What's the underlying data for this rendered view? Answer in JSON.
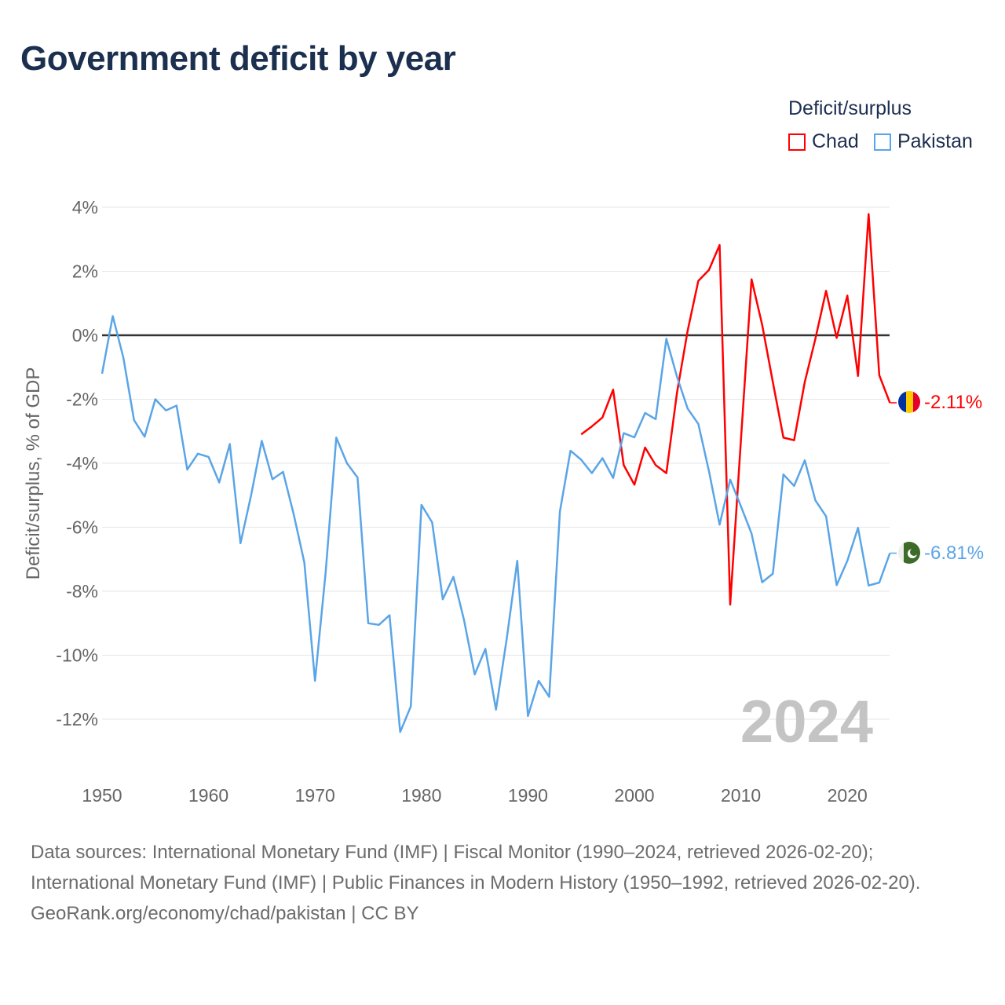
{
  "title": "Government deficit by year",
  "legend": {
    "title": "Deficit/surplus",
    "items": [
      {
        "name": "Chad",
        "color": "#ff0000"
      },
      {
        "name": "Pakistan",
        "color": "#5aa5e8"
      }
    ]
  },
  "footer": {
    "sources": "Data sources: International Monetary Fund (IMF) | Fiscal Monitor (1990–2024, retrieved 2026-02-20); International Monetary Fund (IMF) | Public Finances in Modern History (1950–1992, retrieved 2026-02-20).",
    "attribution": "GeoRank.org/economy/chad/pakistan | CC BY"
  },
  "chart_data": {
    "type": "line",
    "title": "Government deficit by year",
    "ylabel": "Deficit/surplus, % of GDP",
    "xlabel": "",
    "xlim": [
      1950,
      2024
    ],
    "ylim": [
      -12,
      4
    ],
    "x_ticks": [
      "1950",
      "1960",
      "1970",
      "1980",
      "1990",
      "2000",
      "2010",
      "2020"
    ],
    "y_ticks": [
      "4%",
      "2%",
      "0%",
      "-2%",
      "-4%",
      "-6%",
      "-8%",
      "-10%",
      "-12%"
    ],
    "year_watermark": "2024",
    "series": [
      {
        "name": "Chad",
        "color": "#ff0000",
        "end_label": "-2.11%",
        "start_year": 1995,
        "values": [
          -3.1,
          -2.85,
          -2.57,
          -1.7,
          -4.06,
          -4.67,
          -3.51,
          -4.06,
          -4.31,
          -1.8,
          0.14,
          1.7,
          2.04,
          2.82,
          -8.42,
          -3.3,
          1.75,
          0.33,
          -1.46,
          -3.2,
          -3.28,
          -1.46,
          -0.11,
          1.39,
          -0.08,
          1.24,
          -1.27,
          3.79,
          -1.25,
          -2.11
        ]
      },
      {
        "name": "Pakistan",
        "color": "#5aa5e8",
        "end_label": "-6.81%",
        "start_year": 1950,
        "values": [
          -1.2,
          0.6,
          -0.7,
          -2.65,
          -3.17,
          -2.0,
          -2.35,
          -2.2,
          -4.2,
          -3.7,
          -3.8,
          -4.6,
          -3.4,
          -6.5,
          -5.0,
          -3.3,
          -4.5,
          -4.27,
          -5.6,
          -7.1,
          -10.8,
          -7.4,
          -3.2,
          -4.0,
          -4.45,
          -9.0,
          -9.05,
          -8.75,
          -12.4,
          -11.6,
          -5.3,
          -5.85,
          -8.25,
          -7.55,
          -8.9,
          -10.6,
          -9.8,
          -11.7,
          -9.5,
          -7.05,
          -11.9,
          -10.8,
          -11.3,
          -5.51,
          -3.61,
          -3.89,
          -4.31,
          -3.84,
          -4.46,
          -3.06,
          -3.19,
          -2.43,
          -2.62,
          -0.11,
          -1.29,
          -2.29,
          -2.77,
          -4.24,
          -5.92,
          -4.51,
          -5.34,
          -6.2,
          -7.72,
          -7.45,
          -4.35,
          -4.71,
          -3.91,
          -5.16,
          -5.66,
          -7.81,
          -7.05,
          -6.02,
          -7.82,
          -7.73,
          -6.81
        ]
      }
    ]
  }
}
